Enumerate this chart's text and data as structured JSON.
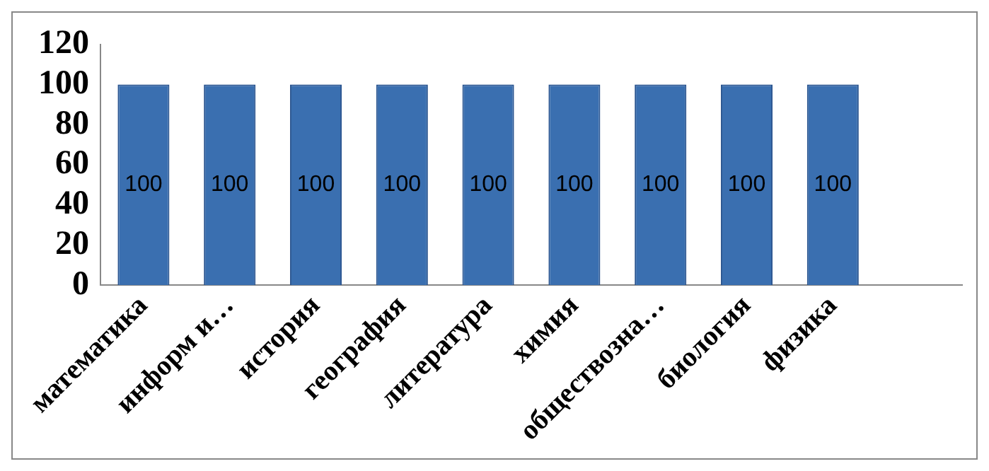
{
  "chart_data": {
    "type": "bar",
    "categories": [
      "математика",
      "информ и…",
      "история",
      "география",
      "литература",
      "химия",
      "обществозна…",
      "биология",
      "физика",
      null
    ],
    "values": [
      100,
      100,
      100,
      100,
      100,
      100,
      100,
      100,
      100,
      null
    ],
    "color": "#3a6fb0",
    "ylim": [
      0,
      120
    ],
    "yticks": [
      0,
      20,
      40,
      60,
      80,
      100,
      120
    ],
    "grid": false,
    "legend": false,
    "data_labels": true
  }
}
